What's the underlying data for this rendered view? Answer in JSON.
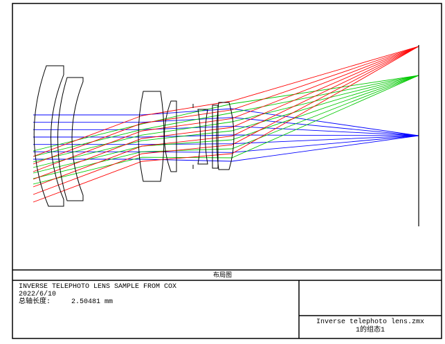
{
  "plot": {
    "title_bar": "布局图",
    "colors": {
      "field1": "#0000ff",
      "field2": "#00c800",
      "field3": "#ff0000",
      "lens": "#000000"
    }
  },
  "info": {
    "title": "INVERSE TELEPHOTO LENS SAMPLE FROM COX",
    "date": "2022/6/10",
    "total_length_label": "总轴长度:",
    "total_length_value": "2.50481 mm"
  },
  "file": {
    "name": "Inverse telephoto lens.zmx",
    "config": "1的组态1"
  }
}
